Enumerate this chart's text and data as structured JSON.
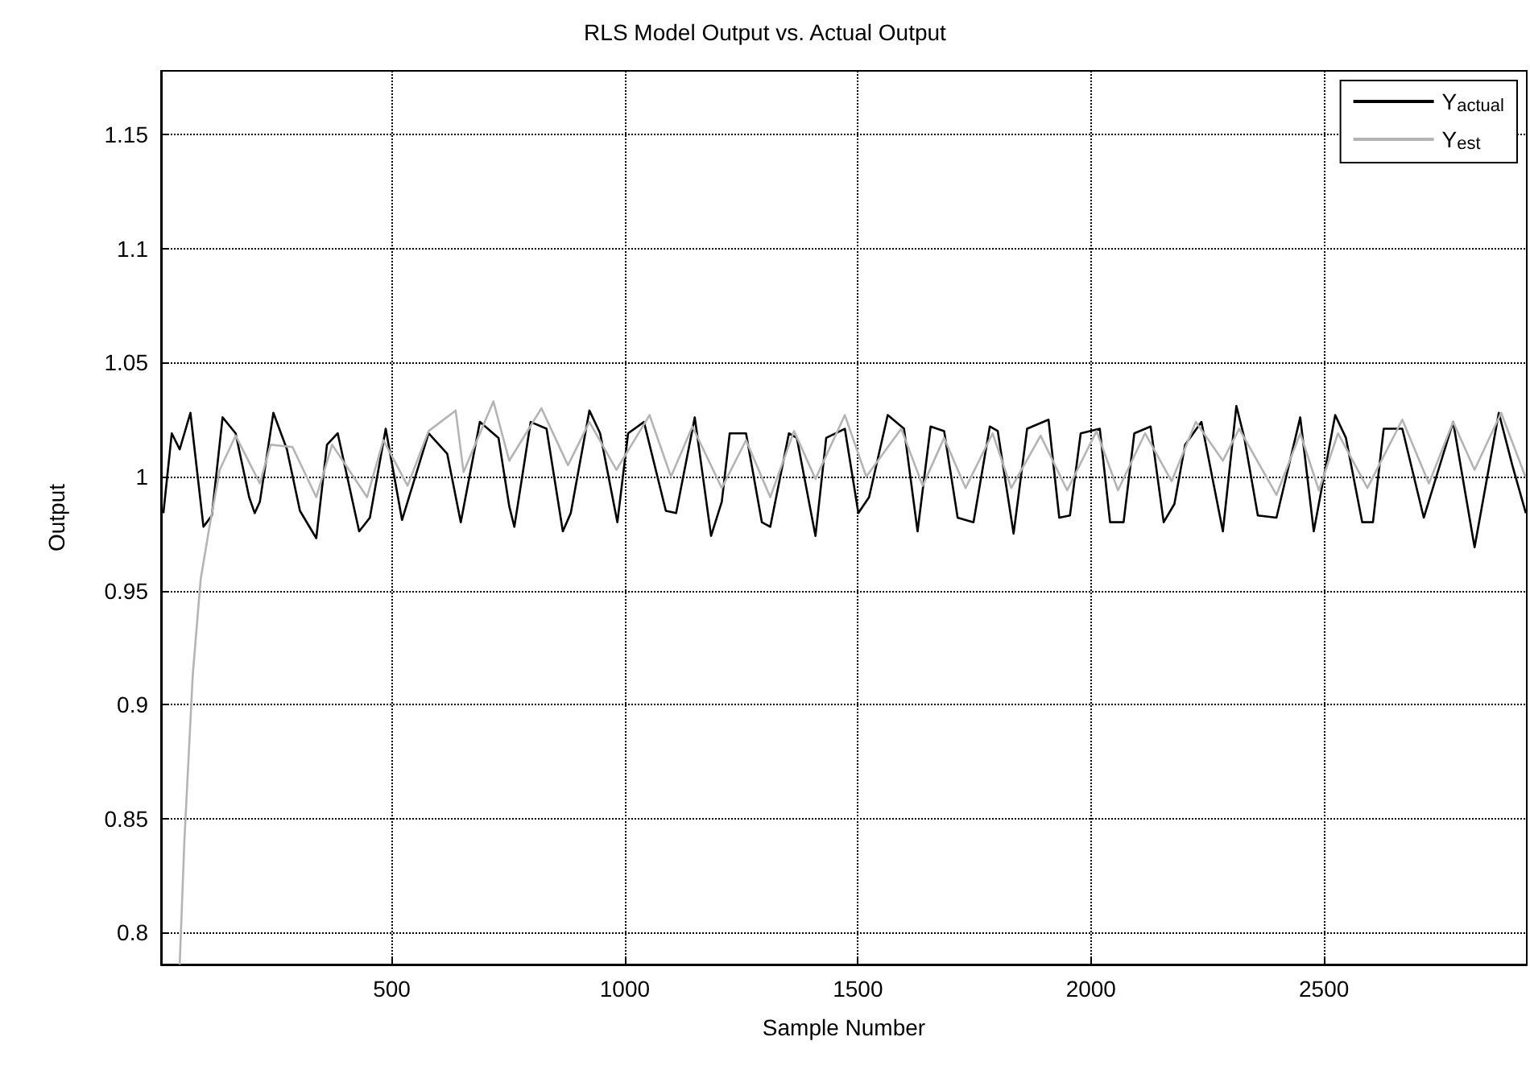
{
  "chart_data": {
    "type": "line",
    "title": "RLS Model Output vs. Actual Output",
    "xlabel": "Sample Number",
    "ylabel": "Output",
    "xlim": [
      5,
      2935
    ],
    "ylim": [
      0.786,
      1.178
    ],
    "xticks": [
      500,
      1000,
      1500,
      2000,
      2500
    ],
    "yticks": [
      0.8,
      0.85,
      0.9,
      0.95,
      1,
      1.05,
      1.1,
      1.15
    ],
    "grid": true,
    "legend": "top right",
    "marker": "none",
    "line_style": "solid",
    "series": [
      {
        "name": "Y$_{actual}$",
        "color": "#000000",
        "x": [
          10,
          28,
          45,
          68,
          96,
          114,
          137,
          165,
          194,
          206,
          217,
          246,
          275,
          303,
          338,
          361,
          384,
          430,
          453,
          487,
          522,
          579,
          619,
          648,
          689,
          729,
          752,
          763,
          798,
          832,
          867,
          884,
          924,
          947,
          984,
          1007,
          1041,
          1088,
          1110,
          1150,
          1185,
          1208,
          1225,
          1260,
          1294,
          1312,
          1352,
          1369,
          1409,
          1432,
          1472,
          1501,
          1524,
          1564,
          1599,
          1628,
          1656,
          1685,
          1714,
          1748,
          1783,
          1800,
          1834,
          1863,
          1909,
          1932,
          1955,
          1978,
          2019,
          2041,
          2070,
          2093,
          2128,
          2156,
          2179,
          2202,
          2237,
          2283,
          2312,
          2329,
          2358,
          2398,
          2449,
          2478,
          2524,
          2547,
          2582,
          2605,
          2628,
          2668,
          2714,
          2777,
          2823,
          2875,
          2904,
          2933
        ],
        "values": [
          0.984,
          1.019,
          1.012,
          1.028,
          0.978,
          0.983,
          1.026,
          1.019,
          0.991,
          0.984,
          0.989,
          1.028,
          1.012,
          0.985,
          0.973,
          1.014,
          1.019,
          0.976,
          0.982,
          1.021,
          0.981,
          1.019,
          1.01,
          0.98,
          1.024,
          1.017,
          0.987,
          0.978,
          1.024,
          1.021,
          0.976,
          0.984,
          1.029,
          1.019,
          0.98,
          1.019,
          1.024,
          0.985,
          0.984,
          1.026,
          0.974,
          0.989,
          1.019,
          1.019,
          0.98,
          0.978,
          1.019,
          1.017,
          0.974,
          1.017,
          1.021,
          0.984,
          0.991,
          1.027,
          1.021,
          0.976,
          1.022,
          1.02,
          0.982,
          0.98,
          1.022,
          1.02,
          0.975,
          1.021,
          1.025,
          0.982,
          0.983,
          1.019,
          1.021,
          0.98,
          0.98,
          1.019,
          1.022,
          0.98,
          0.988,
          1.014,
          1.024,
          0.976,
          1.031,
          1.017,
          0.983,
          0.982,
          1.026,
          0.976,
          1.027,
          1.017,
          0.98,
          0.98,
          1.021,
          1.021,
          0.982,
          1.024,
          0.969,
          1.028,
          1.005,
          0.984
        ]
      },
      {
        "name": "Y$_{est}$",
        "color": "#b4b4b4",
        "x": [
          45,
          55,
          73,
          90,
          108,
          131,
          165,
          217,
          240,
          287,
          338,
          372,
          447,
          482,
          534,
          579,
          637,
          654,
          718,
          752,
          821,
          878,
          924,
          982,
          1053,
          1099,
          1145,
          1208,
          1260,
          1312,
          1363,
          1409,
          1472,
          1518,
          1593,
          1639,
          1685,
          1731,
          1789,
          1829,
          1892,
          1949,
          2012,
          2058,
          2116,
          2173,
          2225,
          2283,
          2318,
          2398,
          2449,
          2489,
          2530,
          2593,
          2668,
          2725,
          2777,
          2823,
          2880,
          2932
        ],
        "values": [
          0.786,
          0.84,
          0.913,
          0.955,
          0.977,
          1.003,
          1.018,
          0.997,
          1.014,
          1.013,
          0.991,
          1.014,
          0.991,
          1.016,
          0.996,
          1.02,
          1.029,
          1.002,
          1.033,
          1.007,
          1.03,
          1.005,
          1.024,
          1.003,
          1.027,
          1.0,
          1.022,
          0.995,
          1.016,
          0.991,
          1.02,
          0.999,
          1.027,
          1.0,
          1.021,
          0.996,
          1.017,
          0.995,
          1.019,
          0.995,
          1.018,
          0.994,
          1.02,
          0.994,
          1.019,
          0.998,
          1.024,
          1.007,
          1.021,
          0.992,
          1.019,
          0.994,
          1.019,
          0.995,
          1.025,
          0.997,
          1.024,
          1.003,
          1.028,
          1.0
        ]
      }
    ]
  }
}
